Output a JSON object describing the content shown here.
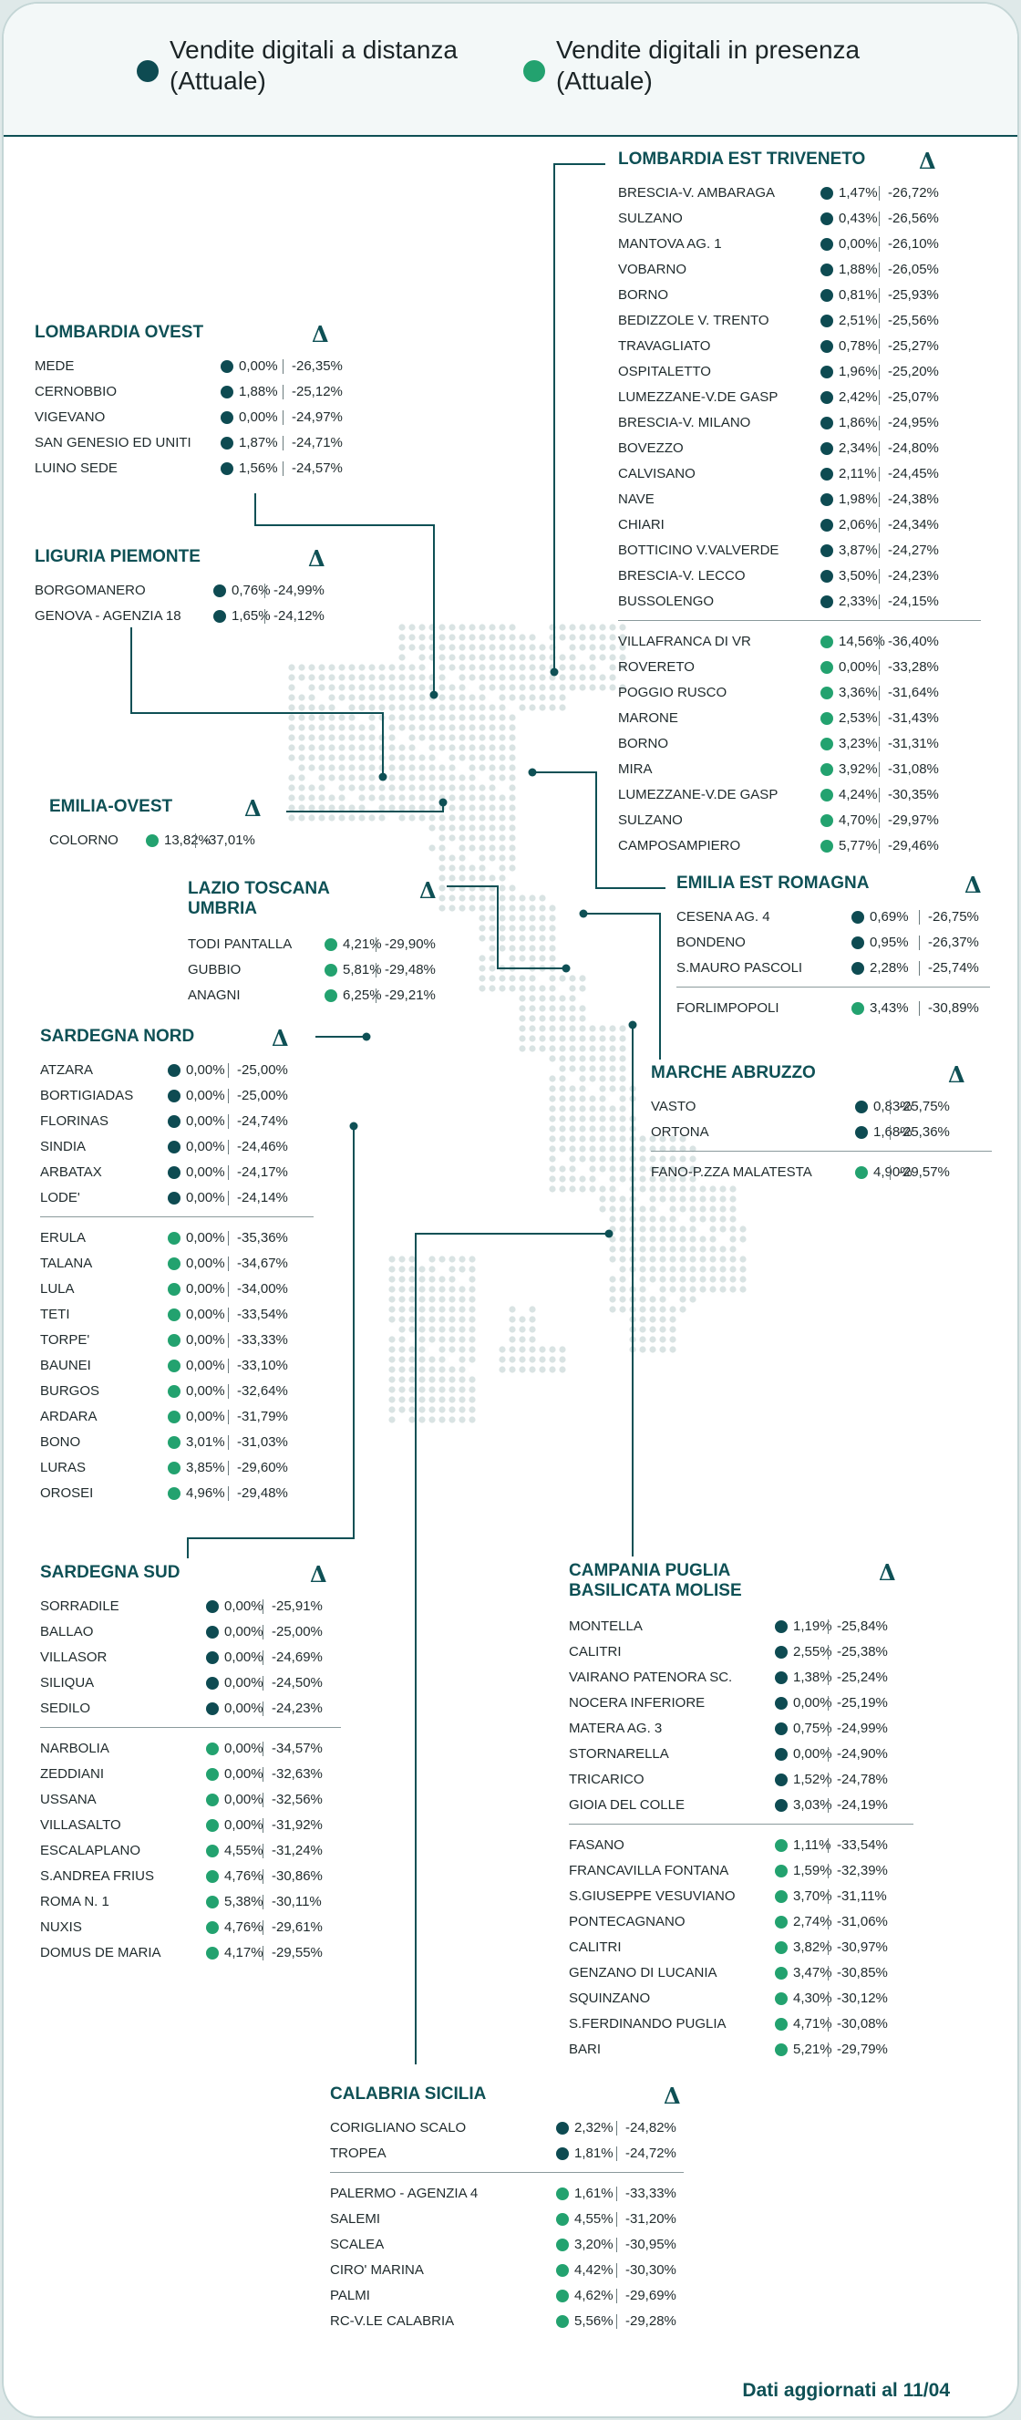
{
  "colors": {
    "distanza": "#0e4b52",
    "presenza": "#23a26f",
    "accent": "#0e5055",
    "map_dot": "#d9e3e3"
  },
  "legend": {
    "distanza": {
      "icon": "dark-teal-dot",
      "label": "Vendite digitali a distanza\n(Attuale)"
    },
    "presenza": {
      "icon": "green-dot",
      "label": "Vendite digitali in presenza\n(Attuale)"
    }
  },
  "delta_symbol": "Δ",
  "footer": "Dati aggiornati al 11/04",
  "regions": [
    {
      "title": "LOMBARDIA EST TRIVENETO",
      "distanza": [
        [
          "BRESCIA-V. AMBARAGA",
          "1,47%",
          "-26,72%"
        ],
        [
          "SULZANO",
          "0,43%",
          "-26,56%"
        ],
        [
          "MANTOVA AG. 1",
          "0,00%",
          "-26,10%"
        ],
        [
          "VOBARNO",
          "1,88%",
          "-26,05%"
        ],
        [
          "BORNO",
          "0,81%",
          "-25,93%"
        ],
        [
          "BEDIZZOLE V. TRENTO",
          "2,51%",
          "-25,56%"
        ],
        [
          "TRAVAGLIATO",
          "0,78%",
          "-25,27%"
        ],
        [
          "OSPITALETTO",
          "1,96%",
          "-25,20%"
        ],
        [
          "LUMEZZANE-V.DE GASP",
          "2,42%",
          "-25,07%"
        ],
        [
          "BRESCIA-V. MILANO",
          "1,86%",
          "-24,95%"
        ],
        [
          "BOVEZZO",
          "2,34%",
          "-24,80%"
        ],
        [
          "CALVISANO",
          "2,11%",
          "-24,45%"
        ],
        [
          "NAVE",
          "1,98%",
          "-24,38%"
        ],
        [
          "CHIARI",
          "2,06%",
          "-24,34%"
        ],
        [
          "BOTTICINO V.VALVERDE",
          "3,87%",
          "-24,27%"
        ],
        [
          "BRESCIA-V. LECCO",
          "3,50%",
          "-24,23%"
        ],
        [
          "BUSSOLENGO",
          "2,33%",
          "-24,15%"
        ]
      ],
      "presenza": [
        [
          "VILLAFRANCA DI VR",
          "14,56%",
          "-36,40%"
        ],
        [
          "ROVERETO",
          "0,00%",
          "-33,28%"
        ],
        [
          "POGGIO RUSCO",
          "3,36%",
          "-31,64%"
        ],
        [
          "MARONE",
          "2,53%",
          "-31,43%"
        ],
        [
          "BORNO",
          "3,23%",
          "-31,31%"
        ],
        [
          "MIRA",
          "3,92%",
          "-31,08%"
        ],
        [
          "LUMEZZANE-V.DE GASP",
          "4,24%",
          "-30,35%"
        ],
        [
          "SULZANO",
          "4,70%",
          "-29,97%"
        ],
        [
          "CAMPOSAMPIERO",
          "5,77%",
          "-29,46%"
        ]
      ]
    },
    {
      "title": "LOMBARDIA OVEST",
      "distanza": [
        [
          "MEDE",
          "0,00%",
          "-26,35%"
        ],
        [
          "CERNOBBIO",
          "1,88%",
          "-25,12%"
        ],
        [
          "VIGEVANO",
          "0,00%",
          "-24,97%"
        ],
        [
          "SAN GENESIO ED UNITI",
          "1,87%",
          "-24,71%"
        ],
        [
          "LUINO SEDE",
          "1,56%",
          "-24,57%"
        ]
      ],
      "presenza": []
    },
    {
      "title": "LIGURIA PIEMONTE",
      "distanza": [
        [
          "BORGOMANERO",
          "0,76%",
          "-24,99%"
        ],
        [
          "GENOVA - AGENZIA 18",
          "1,65%",
          "-24,12%"
        ]
      ],
      "presenza": []
    },
    {
      "title": "EMILIA-OVEST",
      "distanza": [],
      "presenza": [
        [
          "COLORNO",
          "13,82%",
          "-37,01%"
        ]
      ]
    },
    {
      "title": "LAZIO TOSCANA\nUMBRIA",
      "distanza": [],
      "presenza": [
        [
          "TODI PANTALLA",
          "4,21%",
          "-29,90%"
        ],
        [
          "GUBBIO",
          "5,81%",
          "-29,48%"
        ],
        [
          "ANAGNI",
          "6,25%",
          "-29,21%"
        ]
      ]
    },
    {
      "title": "EMILIA EST ROMAGNA",
      "distanza": [
        [
          "CESENA AG. 4",
          "0,69%",
          "-26,75%"
        ],
        [
          "BONDENO",
          "0,95%",
          "-26,37%"
        ],
        [
          "S.MAURO PASCOLI",
          "2,28%",
          "-25,74%"
        ]
      ],
      "presenza": [
        [
          "FORLIMPOPOLI",
          "3,43%",
          "-30,89%"
        ]
      ]
    },
    {
      "title": "SARDEGNA NORD",
      "distanza": [
        [
          "ATZARA",
          "0,00%",
          "-25,00%"
        ],
        [
          "BORTIGIADAS",
          "0,00%",
          "-25,00%"
        ],
        [
          "FLORINAS",
          "0,00%",
          "-24,74%"
        ],
        [
          "SINDIA",
          "0,00%",
          "-24,46%"
        ],
        [
          "ARBATAX",
          "0,00%",
          "-24,17%"
        ],
        [
          "LODE'",
          "0,00%",
          "-24,14%"
        ]
      ],
      "presenza": [
        [
          "ERULA",
          "0,00%",
          "-35,36%"
        ],
        [
          "TALANA",
          "0,00%",
          "-34,67%"
        ],
        [
          "LULA",
          "0,00%",
          "-34,00%"
        ],
        [
          "TETI",
          "0,00%",
          "-33,54%"
        ],
        [
          "TORPE'",
          "0,00%",
          "-33,33%"
        ],
        [
          "BAUNEI",
          "0,00%",
          "-33,10%"
        ],
        [
          "BURGOS",
          "0,00%",
          "-32,64%"
        ],
        [
          "ARDARA",
          "0,00%",
          "-31,79%"
        ],
        [
          "BONO",
          "3,01%",
          "-31,03%"
        ],
        [
          "LURAS",
          "3,85%",
          "-29,60%"
        ],
        [
          "OROSEI",
          "4,96%",
          "-29,48%"
        ]
      ]
    },
    {
      "title": "MARCHE ABRUZZO",
      "distanza": [
        [
          "VASTO",
          "0,83%",
          "-25,75%"
        ],
        [
          "ORTONA",
          "1,68%",
          "-25,36%"
        ]
      ],
      "presenza": [
        [
          "FANO-P.ZZA MALATESTA",
          "4,90%",
          "-29,57%"
        ]
      ]
    },
    {
      "title": "SARDEGNA SUD",
      "distanza": [
        [
          "SORRADILE",
          "0,00%",
          "-25,91%"
        ],
        [
          "BALLAO",
          "0,00%",
          "-25,00%"
        ],
        [
          "VILLASOR",
          "0,00%",
          "-24,69%"
        ],
        [
          "SILIQUA",
          "0,00%",
          "-24,50%"
        ],
        [
          "SEDILO",
          "0,00%",
          "-24,23%"
        ]
      ],
      "presenza": [
        [
          "NARBOLIA",
          "0,00%",
          "-34,57%"
        ],
        [
          "ZEDDIANI",
          "0,00%",
          "-32,63%"
        ],
        [
          "USSANA",
          "0,00%",
          "-32,56%"
        ],
        [
          "VILLASALTO",
          "0,00%",
          "-31,92%"
        ],
        [
          "ESCALAPLANO",
          "4,55%",
          "-31,24%"
        ],
        [
          "S.ANDREA FRIUS",
          "4,76%",
          "-30,86%"
        ],
        [
          "ROMA N.  1",
          "5,38%",
          "-30,11%"
        ],
        [
          "NUXIS",
          "4,76%",
          "-29,61%"
        ],
        [
          "DOMUS DE MARIA",
          "4,17%",
          "-29,55%"
        ]
      ]
    },
    {
      "title": "CAMPANIA PUGLIA\nBASILICATA MOLISE",
      "distanza": [
        [
          "MONTELLA",
          "1,19%",
          "-25,84%"
        ],
        [
          "CALITRI",
          "2,55%",
          "-25,38%"
        ],
        [
          "VAIRANO PATENORA SC.",
          "1,38%",
          "-25,24%"
        ],
        [
          "NOCERA INFERIORE",
          "0,00%",
          "-25,19%"
        ],
        [
          "MATERA AG. 3",
          "0,75%",
          "-24,99%"
        ],
        [
          "STORNARELLA",
          "0,00%",
          "-24,90%"
        ],
        [
          "TRICARICO",
          "1,52%",
          "-24,78%"
        ],
        [
          "GIOIA DEL COLLE",
          "3,03%",
          "-24,19%"
        ]
      ],
      "presenza": [
        [
          "FASANO",
          "1,11%",
          "-33,54%"
        ],
        [
          "FRANCAVILLA FONTANA",
          "1,59%",
          "-32,39%"
        ],
        [
          "S.GIUSEPPE VESUVIANO",
          "3,70%",
          "-31,11%"
        ],
        [
          "PONTECAGNANO",
          "2,74%",
          "-31,06%"
        ],
        [
          "CALITRI",
          "3,82%",
          "-30,97%"
        ],
        [
          "GENZANO DI LUCANIA",
          "3,47%",
          "-30,85%"
        ],
        [
          "SQUINZANO",
          "4,30%",
          "-30,12%"
        ],
        [
          "S.FERDINANDO PUGLIA",
          "4,71%",
          "-30,08%"
        ],
        [
          "BARI",
          "5,21%",
          "-29,79%"
        ]
      ]
    },
    {
      "title": "CALABRIA SICILIA",
      "distanza": [
        [
          "CORIGLIANO SCALO",
          "2,32%",
          "-24,82%"
        ],
        [
          "TROPEA",
          "1,81%",
          "-24,72%"
        ]
      ],
      "presenza": [
        [
          "PALERMO - AGENZIA  4",
          "1,61%",
          "-33,33%"
        ],
        [
          "SALEMI",
          "4,55%",
          "-31,20%"
        ],
        [
          "SCALEA",
          "3,20%",
          "-30,95%"
        ],
        [
          "CIRO' MARINA",
          "4,42%",
          "-30,30%"
        ],
        [
          "PALMI",
          "4,62%",
          "-29,69%"
        ],
        [
          "RC-V.LE CALABRIA",
          "5,56%",
          "-29,28%"
        ]
      ]
    }
  ]
}
